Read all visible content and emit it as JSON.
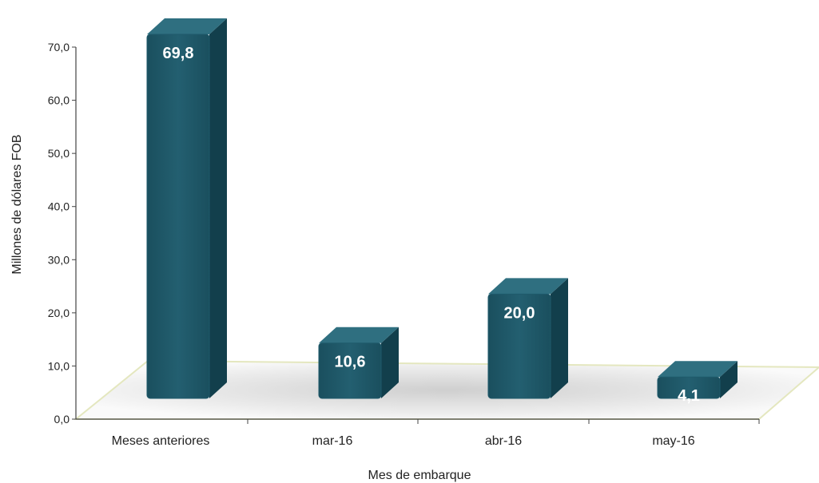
{
  "chart_data": {
    "type": "bar",
    "categories": [
      "Meses anteriores",
      "mar-16",
      "abr-16",
      "may-16"
    ],
    "values": [
      69.8,
      10.6,
      20.0,
      4.1
    ],
    "data_labels": [
      "69,8",
      "10,6",
      "20,0",
      "4,1"
    ],
    "yticks": [
      0,
      10,
      20,
      30,
      40,
      50,
      60,
      70
    ],
    "ytick_labels": [
      "0,0",
      "10,0",
      "20,0",
      "30,0",
      "40,0",
      "50,0",
      "60,0",
      "70,0"
    ],
    "ylim": [
      0,
      70
    ],
    "xlabel": "Mes de embarque",
    "ylabel": "Millones de dólares FOB",
    "grid": false,
    "legend": "none",
    "style": "3d-column",
    "colors": {
      "bar_front": "#1f5a6b",
      "bar_top": "#2f6f80",
      "bar_side": "#123f4c",
      "floor_edge": "#e4e7bf",
      "axis": "#444444"
    }
  }
}
